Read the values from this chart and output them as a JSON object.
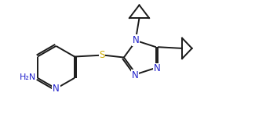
{
  "bg_color": "#ffffff",
  "line_color": "#1a1a1a",
  "N_color": "#2222cc",
  "S_color": "#ccaa00",
  "figsize": [
    3.39,
    1.69
  ],
  "dpi": 100,
  "xlim": [
    0,
    10
  ],
  "ylim": [
    0,
    5
  ]
}
